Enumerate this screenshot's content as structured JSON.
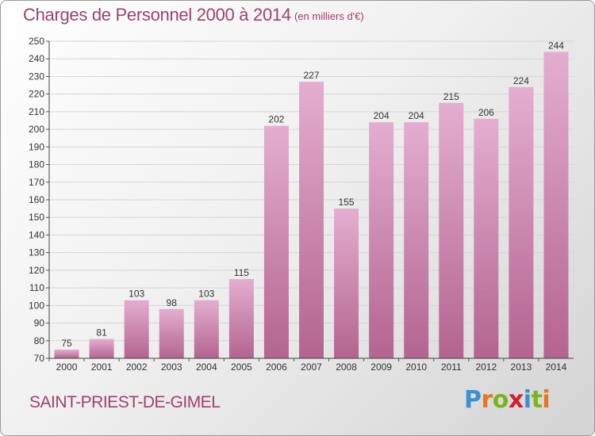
{
  "header": {
    "title": "Charges de Personnel 2000 à 2014",
    "subtitle": "(en milliers d'€)"
  },
  "footer": {
    "commune": "SAINT-PRIEST-DE-GIMEL",
    "logo": {
      "letters": [
        "P",
        "r",
        "o",
        "x",
        "i",
        "t",
        "i"
      ],
      "colors": [
        "#3d8fd1",
        "#e8761c",
        "#7ab51d",
        "#d11d2f",
        "#3d8fd1",
        "#7ab51d",
        "#e8761c"
      ]
    }
  },
  "colors": {
    "bar_light": "#e4aed0",
    "bar_dark": "#b3648f",
    "text_accent": "#a0406e"
  },
  "chart_data": {
    "type": "bar",
    "title": "Charges de Personnel 2000 à 2014",
    "subtitle": "(en milliers d'€)",
    "categories": [
      "2000",
      "2001",
      "2002",
      "2003",
      "2004",
      "2005",
      "2006",
      "2007",
      "2008",
      "2009",
      "2010",
      "2011",
      "2012",
      "2013",
      "2014"
    ],
    "values": [
      75,
      81,
      103,
      98,
      103,
      115,
      202,
      227,
      155,
      204,
      204,
      215,
      206,
      224,
      244
    ],
    "ylim": [
      70,
      250
    ],
    "yticks": [
      70,
      80,
      90,
      100,
      110,
      120,
      130,
      140,
      150,
      160,
      170,
      180,
      190,
      200,
      210,
      220,
      230,
      240,
      250
    ],
    "grid": true,
    "legend": "none"
  }
}
